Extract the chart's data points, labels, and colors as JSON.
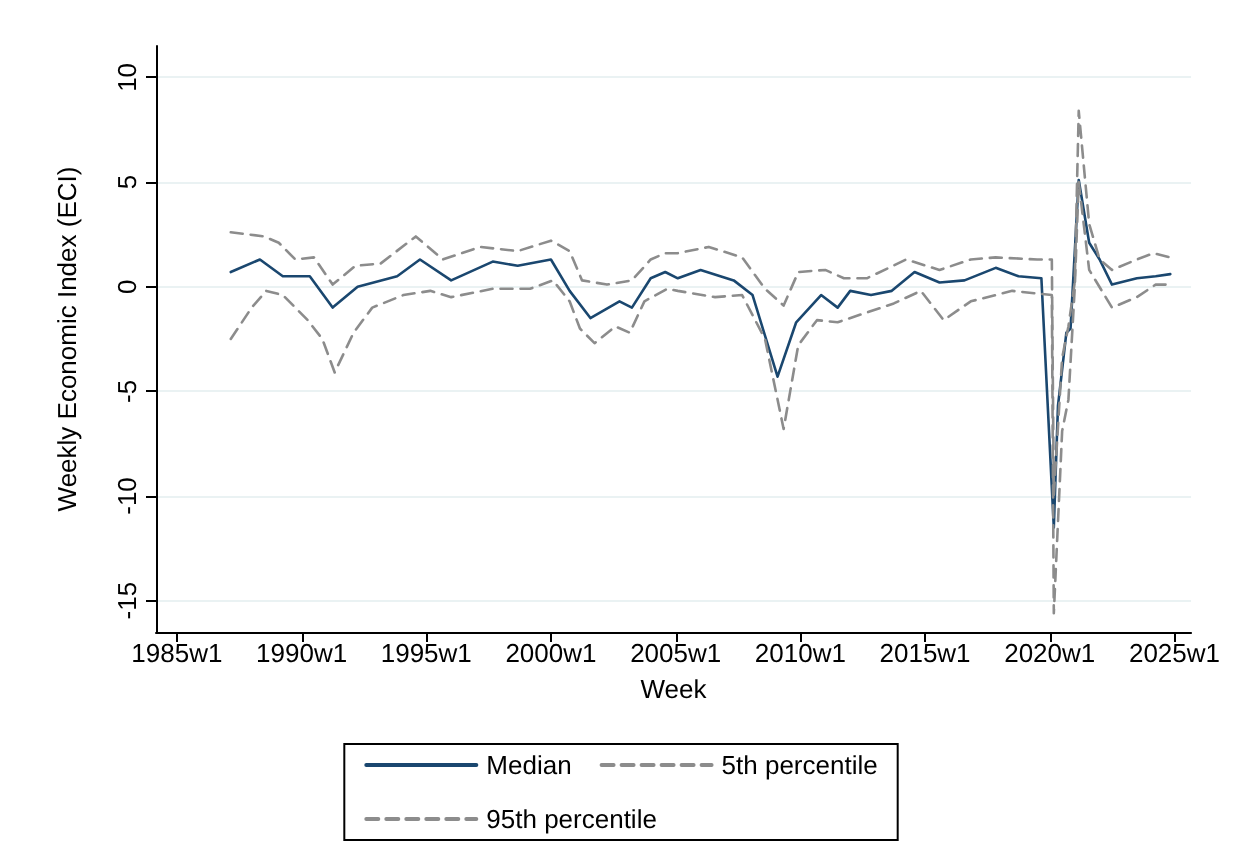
{
  "chart_data": {
    "type": "line",
    "xlabel": "Week",
    "ylabel": "Weekly Economic Index (ECI)",
    "xlim": [
      "1984-03",
      "2025-09"
    ],
    "ylim": [
      -16.5,
      11.5
    ],
    "xticks": [
      {
        "value": "1985-01-01",
        "label": "1985w1"
      },
      {
        "value": "1990-01-01",
        "label": "1990w1"
      },
      {
        "value": "1995-01-01",
        "label": "1995w1"
      },
      {
        "value": "2000-01-01",
        "label": "2000w1"
      },
      {
        "value": "2005-01-01",
        "label": "2005w1"
      },
      {
        "value": "2010-01-01",
        "label": "2010w1"
      },
      {
        "value": "2015-01-01",
        "label": "2015w1"
      },
      {
        "value": "2020-01-01",
        "label": "2020w1"
      },
      {
        "value": "2025-01-01",
        "label": "2025w1"
      }
    ],
    "yticks": [
      -15,
      -10,
      -5,
      0,
      5,
      10
    ],
    "grid": "y",
    "legend": "bottom",
    "marker": "none",
    "series": [
      {
        "name": "Median",
        "color": "#1a476f",
        "line_style": "solid",
        "x": [
          "1987-03",
          "1988-05",
          "1989-04",
          "1990-05",
          "1991-04",
          "1992-04",
          "1993-11",
          "1994-10",
          "1996-01",
          "1997-09",
          "1998-09",
          "2000-01",
          "2000-10",
          "2001-08",
          "2002-10",
          "2003-04",
          "2004-01",
          "2004-08",
          "2005-02",
          "2006-01",
          "2007-05",
          "2008-02",
          "2009-02",
          "2009-11",
          "2010-11",
          "2011-07",
          "2012-01",
          "2012-11",
          "2013-09",
          "2014-08",
          "2015-08",
          "2016-08",
          "2017-11",
          "2018-10",
          "2019-09",
          "2020-03",
          "2020-05",
          "2020-09",
          "2020-11",
          "2021-03",
          "2021-08",
          "2022-01",
          "2022-07",
          "2023-07",
          "2024-04",
          "2024-11"
        ],
        "values": [
          0.7,
          1.3,
          0.5,
          0.5,
          -1.0,
          0.0,
          0.5,
          1.3,
          0.3,
          1.2,
          1.0,
          1.3,
          -0.2,
          -1.5,
          -0.7,
          -1.0,
          0.4,
          0.7,
          0.4,
          0.8,
          0.3,
          -0.4,
          -4.3,
          -1.7,
          -0.4,
          -1.0,
          -0.2,
          -0.4,
          -0.2,
          0.7,
          0.2,
          0.3,
          0.9,
          0.5,
          0.4,
          -11.5,
          -5.7,
          -2.2,
          -2.0,
          5.1,
          2.1,
          1.3,
          0.1,
          0.4,
          0.5,
          0.6
        ]
      },
      {
        "name": "5th percentile",
        "color": "#8c8c8c",
        "line_style": "dashed",
        "x": [
          "1987-03",
          "1988-01",
          "1988-08",
          "1989-04",
          "1990-04",
          "1990-11",
          "1991-05",
          "1992-02",
          "1992-11",
          "1994-02",
          "1995-03",
          "1996-01",
          "1997-09",
          "1999-03",
          "2000-02",
          "2000-10",
          "2001-03",
          "2001-10",
          "2002-08",
          "2003-03",
          "2003-10",
          "2004-09",
          "2005-02",
          "2006-08",
          "2007-09",
          "2008-08",
          "2009-05",
          "2009-12",
          "2010-09",
          "2011-07",
          "2012-07",
          "2013-10",
          "2014-11",
          "2015-10",
          "2016-11",
          "2018-07",
          "2020-02",
          "2020-03",
          "2020-07",
          "2020-10",
          "2021-01",
          "2021-03",
          "2021-08",
          "2022-07",
          "2023-07",
          "2024-04",
          "2024-11"
        ],
        "values": [
          -2.5,
          -1.0,
          -0.2,
          -0.4,
          -1.6,
          -2.5,
          -4.1,
          -2.2,
          -1.0,
          -0.4,
          -0.2,
          -0.5,
          -0.1,
          -0.1,
          0.3,
          -0.7,
          -2.0,
          -2.7,
          -1.9,
          -2.2,
          -0.7,
          -0.1,
          -0.2,
          -0.5,
          -0.4,
          -2.5,
          -6.8,
          -2.8,
          -1.6,
          -1.7,
          -1.3,
          -0.8,
          -0.2,
          -1.6,
          -0.7,
          -0.2,
          -0.4,
          -15.6,
          -6.9,
          -5.4,
          -0.1,
          5.0,
          0.8,
          -1.0,
          -0.5,
          0.1,
          0.1
        ]
      },
      {
        "name": "95th percentile",
        "color": "#8c8c8c",
        "line_style": "dashed",
        "x": [
          "1987-03",
          "1988-07",
          "1989-02",
          "1989-10",
          "1990-07",
          "1991-04",
          "1992-03",
          "1993-03",
          "1994-08",
          "1995-09",
          "1997-03",
          "1998-09",
          "2000-01",
          "2000-10",
          "2001-04",
          "2002-04",
          "2003-04",
          "2004-01",
          "2004-08",
          "2005-02",
          "2006-05",
          "2007-09",
          "2008-08",
          "2009-05",
          "2009-12",
          "2011-01",
          "2011-10",
          "2012-09",
          "2014-04",
          "2015-08",
          "2016-11",
          "2017-11",
          "2019-07",
          "2020-02",
          "2020-03",
          "2020-07",
          "2020-10",
          "2021-01",
          "2021-03",
          "2021-08",
          "2022-01",
          "2022-07",
          "2023-07",
          "2024-03",
          "2024-11"
        ],
        "values": [
          2.6,
          2.4,
          2.1,
          1.3,
          1.4,
          0.1,
          1.0,
          1.1,
          2.4,
          1.3,
          1.9,
          1.7,
          2.2,
          1.7,
          0.3,
          0.1,
          0.3,
          1.3,
          1.6,
          1.6,
          1.9,
          1.4,
          -0.1,
          -0.9,
          0.7,
          0.8,
          0.4,
          0.4,
          1.3,
          0.8,
          1.3,
          1.4,
          1.3,
          1.3,
          -10,
          -3.4,
          -1.9,
          0.2,
          8.4,
          3.0,
          1.3,
          0.8,
          1.3,
          1.6,
          1.4
        ]
      }
    ]
  }
}
